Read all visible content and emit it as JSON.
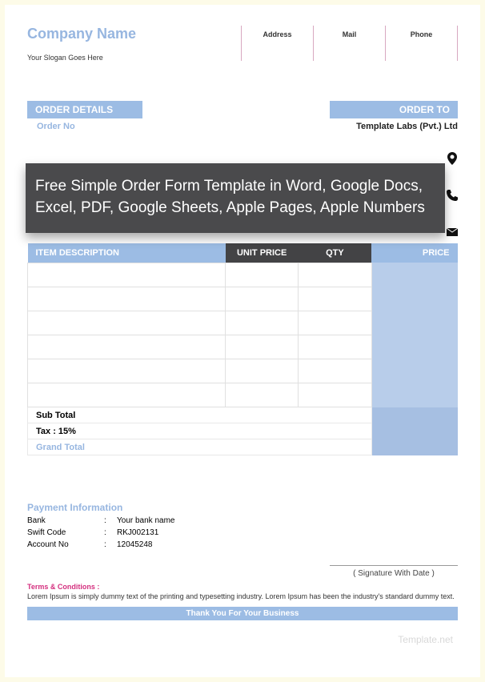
{
  "header": {
    "company_name": "Company Name",
    "slogan": "Your Slogan Goes Here",
    "contacts": {
      "address": "Address",
      "mail": "Mail",
      "phone": "Phone"
    }
  },
  "sections": {
    "order_details_label": "ORDER DETAILS",
    "order_no_label": "Order No",
    "order_to_label": "ORDER TO",
    "order_to_value": "Template Labs (Pvt.) Ltd"
  },
  "overlay_text": "Free Simple Order Form Template in Word, Google Docs, Excel, PDF, Google Sheets, Apple Pages, Apple Numbers",
  "table": {
    "headers": {
      "desc": "ITEM DESCRIPTION",
      "unit": "UNIT PRICE",
      "qty": "QTY",
      "price": "PRICE"
    },
    "row_count": 6,
    "subtotal_label": "Sub Total",
    "tax_label": "Tax : 15%",
    "grand_total_label": "Grand Total"
  },
  "payment": {
    "title": "Payment Information",
    "rows": [
      {
        "label": "Bank",
        "value": "Your bank name"
      },
      {
        "label": "Swift Code",
        "value": "RKJ002131"
      },
      {
        "label": "Account No",
        "value": "12045248"
      }
    ]
  },
  "signature_label": "( Signature With Date )",
  "terms": {
    "title": "Terms & Conditions :",
    "body": "Lorem Ipsum is simply dummy text of the printing and typesetting industry. Lorem Ipsum has been the industry's standard dummy text."
  },
  "watermark": "Template.net",
  "thankyou": "Thank You For Your Business",
  "colors": {
    "accent": "#9cbce4",
    "accent_light": "#b8cdea",
    "dark_header": "#434345",
    "overlay_bg": "#4a4a4c",
    "terms_title": "#d4307f"
  }
}
